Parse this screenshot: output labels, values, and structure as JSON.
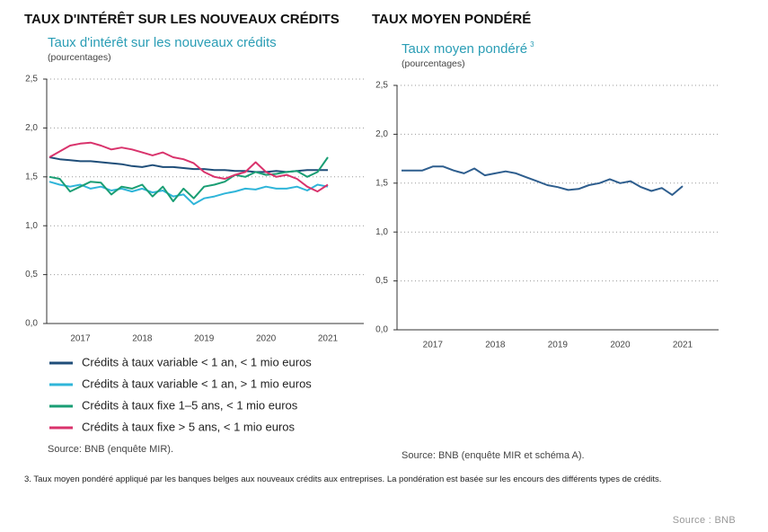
{
  "header": {
    "left": "TAUX D'INTÉRÊT SUR LES NOUVEAUX CRÉDITS",
    "right": "TAUX MOYEN PONDÉRÉ"
  },
  "chart_data": [
    {
      "type": "line",
      "title": "Taux d'intérêt sur les nouveaux crédits",
      "subtitle": "(pourcentages)",
      "categories": [
        null,
        null,
        null,
        "2017",
        null,
        null,
        null,
        null,
        null,
        "2018",
        null,
        null,
        null,
        null,
        null,
        "2019",
        null,
        null,
        null,
        null,
        null,
        "2020",
        null,
        null,
        null,
        null,
        null,
        "2021"
      ],
      "ylim": [
        0,
        2.5
      ],
      "yticks": [
        {
          "value": 0,
          "label": "0,0"
        },
        {
          "value": 0.5,
          "label": "0,5"
        },
        {
          "value": 1,
          "label": "1,0"
        },
        {
          "value": 1.5,
          "label": "1,5"
        },
        {
          "value": 2,
          "label": "2,0"
        },
        {
          "value": 2.5,
          "label": "2,5"
        }
      ],
      "grid": true,
      "legend": "bottom",
      "series": [
        {
          "name": "Crédits à taux variable < 1 an, < 1 mio euros",
          "color": "#1f4e79",
          "values": [
            1.7,
            1.68,
            1.67,
            1.66,
            1.66,
            1.65,
            1.64,
            1.63,
            1.61,
            1.6,
            1.62,
            1.6,
            1.6,
            1.59,
            1.58,
            1.58,
            1.57,
            1.57,
            1.56,
            1.56,
            1.55,
            1.55,
            1.56,
            1.55,
            1.56,
            1.57,
            1.57,
            1.57
          ]
        },
        {
          "name": "Crédits à taux variable < 1 an, > 1 mio euros",
          "color": "#2fb5d9",
          "values": [
            1.45,
            1.42,
            1.4,
            1.42,
            1.38,
            1.4,
            1.36,
            1.38,
            1.35,
            1.38,
            1.34,
            1.36,
            1.3,
            1.32,
            1.22,
            1.28,
            1.3,
            1.33,
            1.35,
            1.38,
            1.37,
            1.4,
            1.38,
            1.38,
            1.4,
            1.36,
            1.42,
            1.4
          ]
        },
        {
          "name": "Crédits à taux fixe 1–5 ans, < 1 mio euros",
          "color": "#1a9e74",
          "values": [
            1.5,
            1.48,
            1.35,
            1.4,
            1.45,
            1.44,
            1.32,
            1.4,
            1.38,
            1.42,
            1.3,
            1.4,
            1.25,
            1.38,
            1.28,
            1.4,
            1.42,
            1.45,
            1.52,
            1.5,
            1.55,
            1.52,
            1.53,
            1.55,
            1.56,
            1.5,
            1.55,
            1.7
          ]
        },
        {
          "name": "Crédits à taux fixe > 5 ans, < 1 mio euros",
          "color": "#d9336c",
          "values": [
            1.7,
            1.76,
            1.82,
            1.84,
            1.85,
            1.82,
            1.78,
            1.8,
            1.78,
            1.75,
            1.72,
            1.75,
            1.7,
            1.68,
            1.64,
            1.55,
            1.5,
            1.48,
            1.52,
            1.55,
            1.65,
            1.55,
            1.5,
            1.52,
            1.48,
            1.4,
            1.35,
            1.42
          ]
        }
      ],
      "source": "Source: BNB (enquête MIR)."
    },
    {
      "type": "line",
      "title": "Taux moyen pondéré",
      "title_note": "3",
      "subtitle": "(pourcentages)",
      "categories": [
        null,
        null,
        null,
        "2017",
        null,
        null,
        null,
        null,
        null,
        "2018",
        null,
        null,
        null,
        null,
        null,
        "2019",
        null,
        null,
        null,
        null,
        null,
        "2020",
        null,
        null,
        null,
        null,
        null,
        "2021"
      ],
      "ylim": [
        0,
        2.5
      ],
      "yticks": [
        {
          "value": 0,
          "label": "0,0"
        },
        {
          "value": 0.5,
          "label": "0,5"
        },
        {
          "value": 1,
          "label": "1,0"
        },
        {
          "value": 1.5,
          "label": "1,5"
        },
        {
          "value": 2,
          "label": "2,0"
        },
        {
          "value": 2.5,
          "label": "2,5"
        }
      ],
      "grid": true,
      "series": [
        {
          "color": "#2e5e8e",
          "values": [
            1.63,
            1.63,
            1.63,
            1.67,
            1.67,
            1.63,
            1.6,
            1.65,
            1.58,
            1.6,
            1.62,
            1.6,
            1.56,
            1.52,
            1.48,
            1.46,
            1.43,
            1.44,
            1.48,
            1.5,
            1.54,
            1.5,
            1.52,
            1.46,
            1.42,
            1.45,
            1.38,
            1.47
          ]
        }
      ],
      "source": "Source: BNB (enquête MIR et schéma A)."
    }
  ],
  "footnote": "3. Taux moyen pondéré appliqué par les banques belges aux nouveaux crédits aux entreprises. La pondération est basée sur les encours des différents types de crédits.",
  "credit": "Source : BNB"
}
